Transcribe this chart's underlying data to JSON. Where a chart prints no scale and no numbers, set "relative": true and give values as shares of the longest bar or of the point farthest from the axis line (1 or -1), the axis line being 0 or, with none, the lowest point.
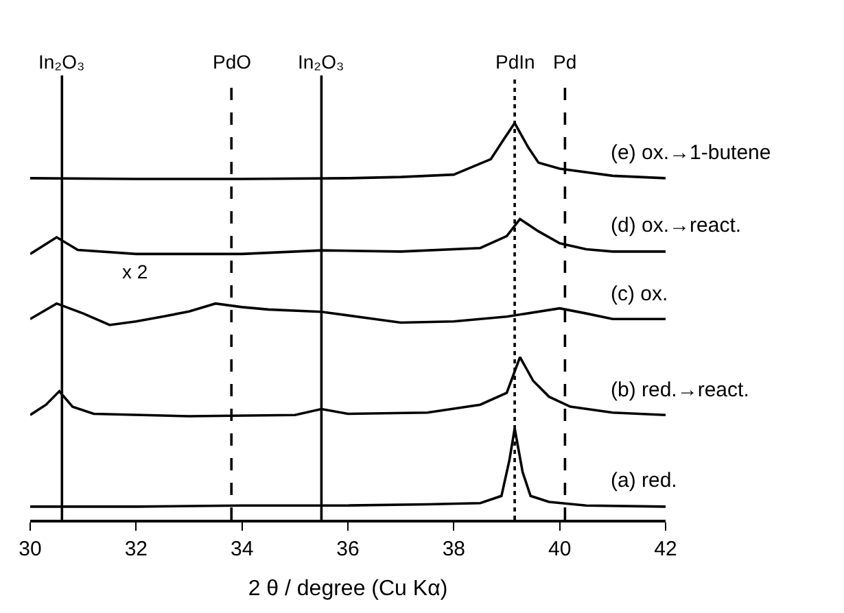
{
  "chart_data": {
    "type": "line",
    "xlabel": "2 θ / degree (Cu Kα)",
    "relative": true,
    "xlim": [
      30,
      42
    ],
    "xticks": [
      30,
      32,
      34,
      36,
      38,
      40,
      42
    ],
    "legend": false,
    "marker": "none",
    "line_style": "solid",
    "series": [
      {
        "name": "(a) red.",
        "color": "#000000",
        "x": [
          30,
          32,
          34,
          36,
          37.5,
          38.5,
          38.9,
          39.05,
          39.15,
          39.3,
          39.45,
          39.8,
          40.5,
          42
        ],
        "values": [
          0.033,
          0.033,
          0.036,
          0.036,
          0.039,
          0.042,
          0.06,
          0.15,
          0.23,
          0.12,
          0.06,
          0.045,
          0.036,
          0.033
        ]
      },
      {
        "name": "(b) red.→react.",
        "color": "#000000",
        "x": [
          30,
          30.3,
          30.55,
          30.8,
          31.2,
          33,
          35,
          35.5,
          36,
          37.5,
          38.5,
          39.0,
          39.25,
          39.5,
          39.8,
          40.2,
          41,
          42
        ],
        "values": [
          0.264,
          0.29,
          0.324,
          0.285,
          0.267,
          0.261,
          0.264,
          0.279,
          0.267,
          0.27,
          0.29,
          0.32,
          0.41,
          0.35,
          0.31,
          0.285,
          0.27,
          0.264
        ]
      },
      {
        "name": "(c) ox.",
        "color": "#000000",
        "x": [
          30,
          30.5,
          31,
          31.5,
          32,
          32.5,
          33,
          33.5,
          34,
          34.5,
          35.5,
          36.5,
          37,
          38,
          39,
          40,
          40.5,
          41,
          42
        ],
        "values": [
          0.506,
          0.545,
          0.52,
          0.491,
          0.5,
          0.512,
          0.525,
          0.545,
          0.536,
          0.53,
          0.524,
          0.506,
          0.497,
          0.5,
          0.512,
          0.533,
          0.52,
          0.506,
          0.506
        ]
      },
      {
        "name": "(d) ox.→react.",
        "color": "#000000",
        "x": [
          30,
          30.5,
          30.9,
          32,
          34,
          35.5,
          37,
          38.5,
          39.0,
          39.25,
          39.6,
          40,
          40.5,
          41,
          42
        ],
        "values": [
          0.67,
          0.712,
          0.68,
          0.67,
          0.67,
          0.679,
          0.676,
          0.685,
          0.715,
          0.758,
          0.727,
          0.697,
          0.682,
          0.676,
          0.676
        ]
      },
      {
        "name": "(e) ox.→1-butene",
        "color": "#000000",
        "x": [
          30,
          32,
          34,
          36,
          37,
          38,
          38.7,
          38.95,
          39.15,
          39.4,
          39.6,
          40,
          41,
          42
        ],
        "values": [
          0.861,
          0.859,
          0.859,
          0.861,
          0.864,
          0.87,
          0.909,
          0.96,
          1.0,
          0.94,
          0.9,
          0.885,
          0.867,
          0.861
        ]
      }
    ],
    "ref_lines": [
      {
        "axis": "x",
        "value": 30.6,
        "label": "In₂O₃",
        "color": "#000000",
        "line_style": "solid"
      },
      {
        "axis": "x",
        "value": 33.8,
        "label": "PdO",
        "color": "#000000",
        "line_style": "dashed"
      },
      {
        "axis": "x",
        "value": 35.5,
        "label": "In₂O₃",
        "color": "#000000",
        "line_style": "solid"
      },
      {
        "axis": "x",
        "value": 39.15,
        "label": "PdIn",
        "color": "#000000",
        "line_style": "dotted"
      },
      {
        "axis": "x",
        "value": 40.1,
        "label": "Pd",
        "color": "#000000",
        "line_style": "dashed"
      }
    ],
    "annotations": [
      "x 2"
    ]
  }
}
